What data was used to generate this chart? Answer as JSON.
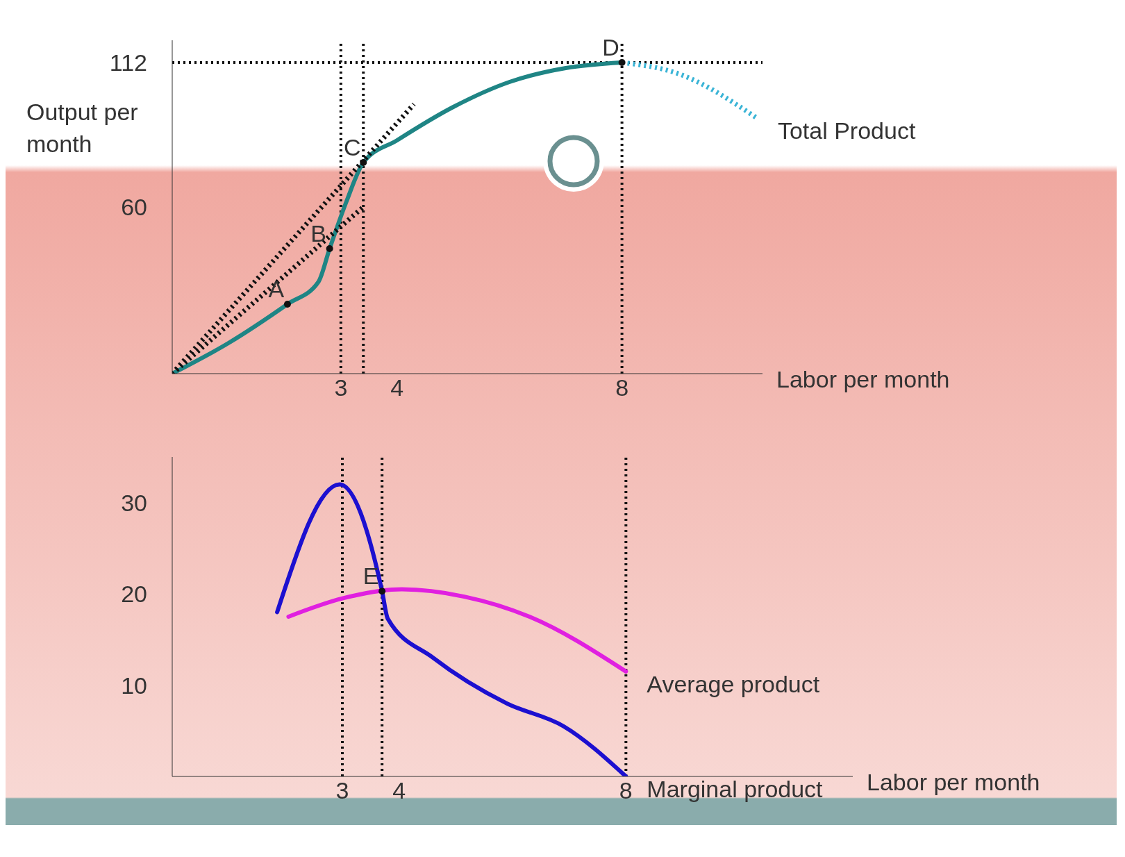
{
  "chart_data": [
    {
      "type": "line",
      "ylabel": "Output per month",
      "xlabel": "Labor per month",
      "xlim": [
        0,
        10.5
      ],
      "xticks": [
        3,
        4,
        8
      ],
      "ylim": [
        0,
        120
      ],
      "yticks": [
        60,
        112
      ],
      "series": [
        {
          "color": "#1f8585",
          "x": [
            0,
            1,
            2.05,
            2.6,
            2.8,
            3.1,
            3.4,
            4,
            5,
            6,
            7,
            8
          ],
          "values": [
            0,
            11,
            25,
            33,
            45,
            62,
            76,
            84,
            96,
            105,
            110,
            112
          ]
        },
        {
          "name": "Total Product",
          "color": "#3ab4d6",
          "line_style": "dotted",
          "x": [
            8,
            9,
            10.4
          ],
          "values": [
            112,
            108,
            92
          ]
        },
        {
          "color": "#111111",
          "line_style": "dotted",
          "x": [
            0,
            4.3
          ],
          "values": [
            0,
            97
          ]
        },
        {
          "color": "#111111",
          "line_style": "dotted",
          "x": [
            0,
            3.4
          ],
          "values": [
            0,
            60
          ]
        }
      ],
      "ref_lines": [
        {
          "axis": "x",
          "value": 3
        },
        {
          "axis": "x",
          "value": 3.4
        },
        {
          "axis": "x",
          "value": 8
        },
        {
          "axis": "y",
          "value": 112
        }
      ],
      "annotations": [
        {
          "text": "A",
          "x": 2.05,
          "y": 25
        },
        {
          "text": "B",
          "x": 2.8,
          "y": 45
        },
        {
          "text": "C",
          "x": 3.4,
          "y": 76
        },
        {
          "text": "D",
          "x": 8,
          "y": 112
        }
      ]
    },
    {
      "type": "line",
      "xlabel": "Labor per month",
      "xlim": [
        0,
        12
      ],
      "xticks": [
        3,
        4,
        8
      ],
      "ylim": [
        0,
        35
      ],
      "yticks": [
        10,
        20,
        30
      ],
      "series": [
        {
          "name": "Marginal product",
          "color": "#1c10d0",
          "x": [
            1.85,
            2.95,
            3.7,
            3.8,
            4.6,
            5.9,
            6.9,
            8
          ],
          "values": [
            18,
            32,
            20.3,
            17.3,
            13,
            8,
            5.5,
            0
          ]
        },
        {
          "name": "Average product",
          "color": "#e020e0",
          "x": [
            2.05,
            3,
            4.05,
            5.15,
            6.3,
            8
          ],
          "values": [
            17.5,
            19.5,
            20.5,
            19.7,
            17.5,
            11.5
          ]
        }
      ],
      "ref_lines": [
        {
          "axis": "x",
          "value": 3
        },
        {
          "axis": "x",
          "value": 3.7
        },
        {
          "axis": "x",
          "value": 8
        }
      ],
      "annotations": [
        {
          "text": "E",
          "x": 3.7,
          "y": 20.3
        }
      ]
    }
  ]
}
